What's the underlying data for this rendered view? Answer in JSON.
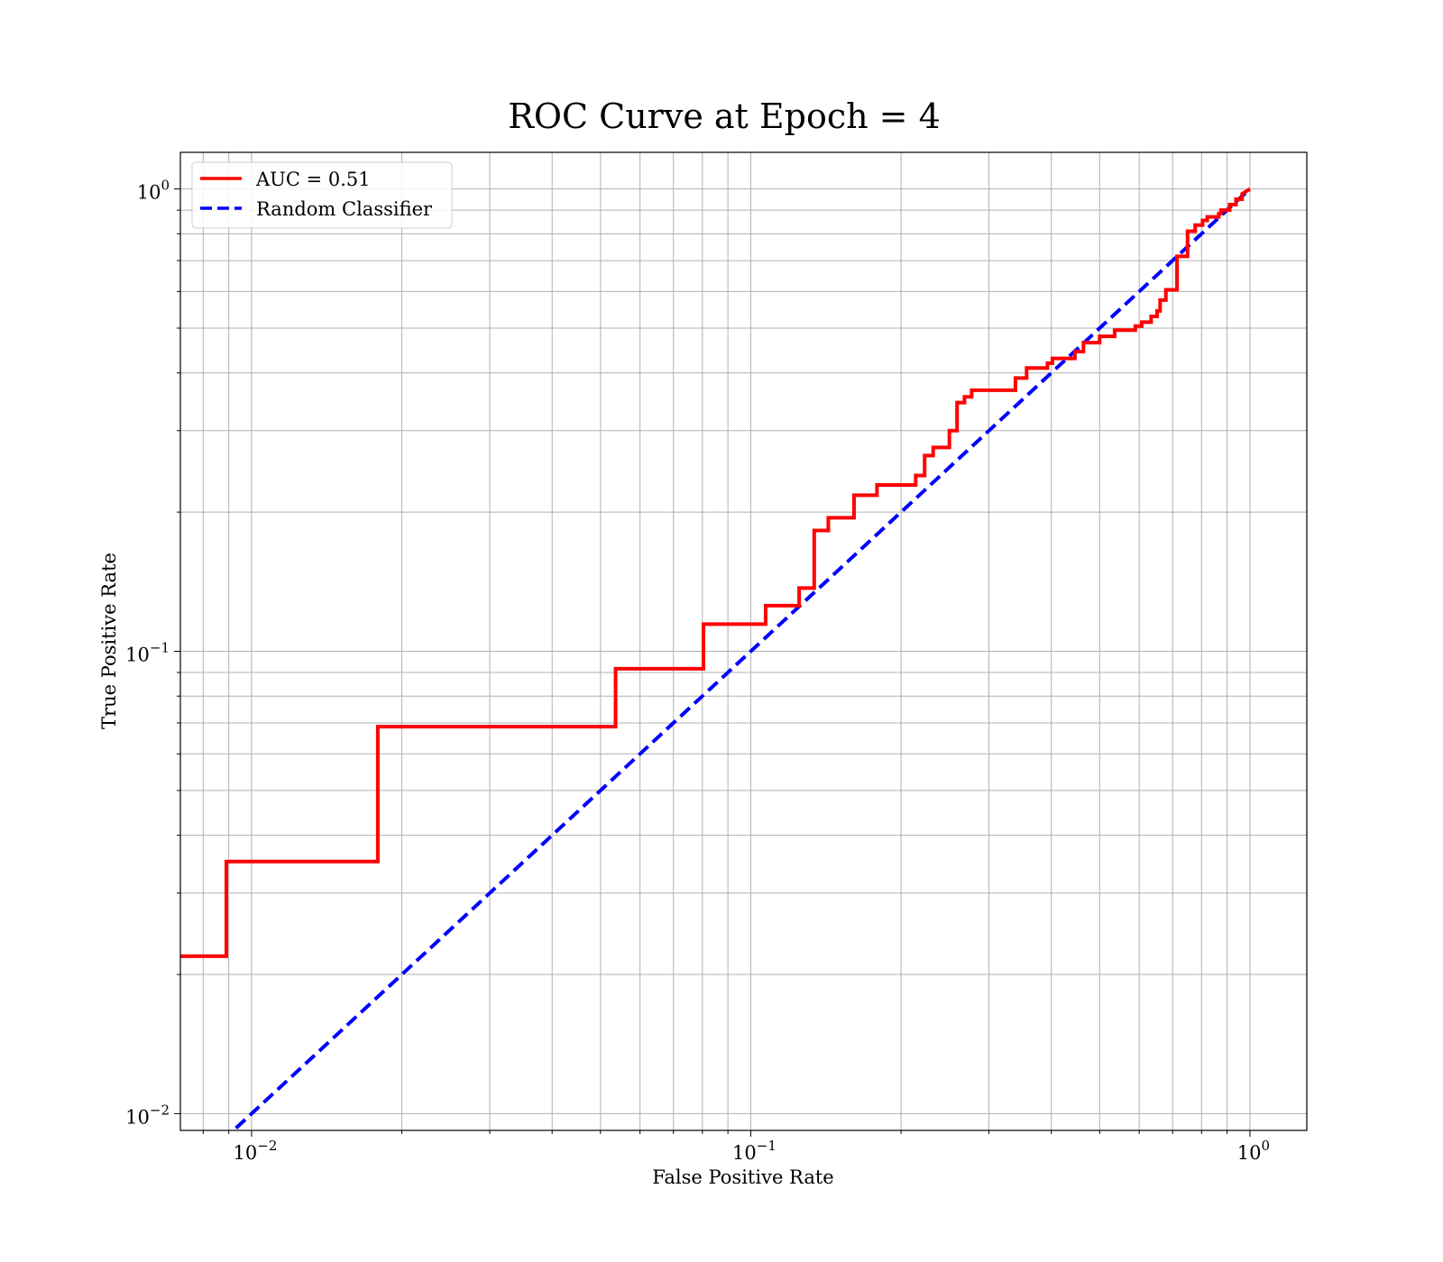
{
  "chart_data": {
    "type": "line",
    "title": "ROC Curve at Epoch = 4",
    "xlabel": "False Positive Rate",
    "ylabel": "True Positive Rate",
    "xscale": "log",
    "yscale": "log",
    "xlim": [
      0.0072,
      1.3
    ],
    "ylim": [
      0.0092,
      1.2
    ],
    "grid": true,
    "grid_which": "both",
    "legend_position": "top-left",
    "x_ticks": [
      {
        "value": 0.01,
        "base": "10",
        "exp": "−2"
      },
      {
        "value": 0.1,
        "base": "10",
        "exp": "−1"
      },
      {
        "value": 1,
        "base": "10",
        "exp": "0"
      }
    ],
    "y_ticks": [
      {
        "value": 0.01,
        "base": "10",
        "exp": "−2"
      },
      {
        "value": 0.1,
        "base": "10",
        "exp": "−1"
      },
      {
        "value": 1,
        "base": "10",
        "exp": "0"
      }
    ],
    "series": [
      {
        "name": "AUC = 0.51",
        "color": "#ff0000",
        "style": "solid",
        "x": [
          0.0072,
          0.0089,
          0.0089,
          0.0179,
          0.0179,
          0.0536,
          0.0536,
          0.0804,
          0.0804,
          0.1071,
          0.1071,
          0.125,
          0.125,
          0.134,
          0.134,
          0.143,
          0.143,
          0.161,
          0.161,
          0.179,
          0.179,
          0.214,
          0.214,
          0.223,
          0.223,
          0.232,
          0.232,
          0.25,
          0.25,
          0.259,
          0.259,
          0.268,
          0.268,
          0.277,
          0.277,
          0.339,
          0.339,
          0.357,
          0.357,
          0.393,
          0.393,
          0.402,
          0.402,
          0.446,
          0.446,
          0.464,
          0.464,
          0.5,
          0.5,
          0.5357,
          0.5357,
          0.5893,
          0.5893,
          0.6071,
          0.6071,
          0.6339,
          0.6339,
          0.6518,
          0.6518,
          0.6607,
          0.6607,
          0.6786,
          0.6786,
          0.7143,
          0.7143,
          0.75,
          0.75,
          0.7768,
          0.7768,
          0.8036,
          0.8036,
          0.8214,
          0.8214,
          0.8661,
          0.8661,
          0.875,
          0.875,
          0.9107,
          0.9107,
          0.9375,
          0.9375,
          0.9643,
          0.9643,
          1.0
        ],
        "y": [
          0.0219,
          0.0219,
          0.0351,
          0.0351,
          0.0687,
          0.0687,
          0.0917,
          0.0917,
          0.1145,
          0.1145,
          0.1255,
          0.1255,
          0.137,
          0.137,
          0.1825,
          0.1825,
          0.1945,
          0.1945,
          0.2175,
          0.2175,
          0.229,
          0.229,
          0.24,
          0.24,
          0.265,
          0.265,
          0.276,
          0.276,
          0.3,
          0.3,
          0.345,
          0.345,
          0.355,
          0.355,
          0.367,
          0.367,
          0.39,
          0.39,
          0.41,
          0.41,
          0.42,
          0.42,
          0.43,
          0.43,
          0.445,
          0.445,
          0.465,
          0.465,
          0.48,
          0.48,
          0.495,
          0.495,
          0.505,
          0.505,
          0.515,
          0.515,
          0.53,
          0.53,
          0.545,
          0.545,
          0.575,
          0.575,
          0.605,
          0.605,
          0.715,
          0.715,
          0.81,
          0.81,
          0.835,
          0.835,
          0.855,
          0.855,
          0.87,
          0.87,
          0.885,
          0.885,
          0.9,
          0.9,
          0.925,
          0.925,
          0.95,
          0.95,
          0.975,
          1.0
        ]
      },
      {
        "name": "Random Classifier",
        "color": "#0000ff",
        "style": "dashed",
        "x": [
          0.0072,
          1.0
        ],
        "y": [
          0.0072,
          1.0
        ]
      }
    ]
  }
}
